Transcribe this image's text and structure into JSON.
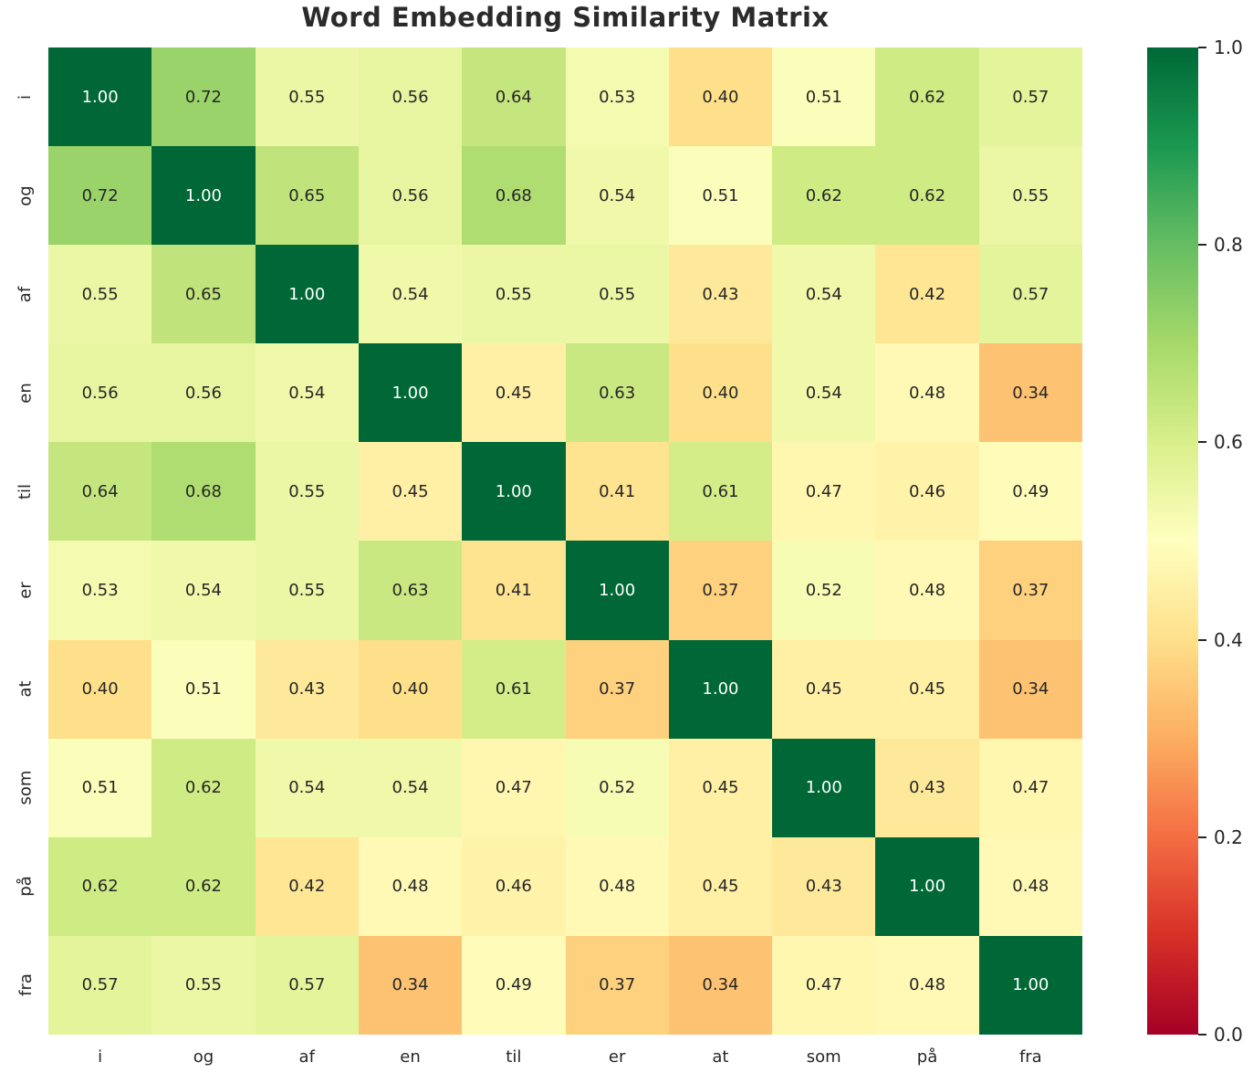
{
  "chart_data": {
    "type": "heatmap",
    "title": "Word Embedding Similarity Matrix",
    "x_tick_labels": [
      "i",
      "og",
      "af",
      "en",
      "til",
      "er",
      "at",
      "som",
      "på",
      "fra"
    ],
    "y_tick_labels": [
      "i",
      "og",
      "af",
      "en",
      "til",
      "er",
      "at",
      "som",
      "på",
      "fra"
    ],
    "matrix": [
      [
        1.0,
        0.72,
        0.55,
        0.56,
        0.64,
        0.53,
        0.4,
        0.51,
        0.62,
        0.57
      ],
      [
        0.72,
        1.0,
        0.65,
        0.56,
        0.68,
        0.54,
        0.51,
        0.62,
        0.62,
        0.55
      ],
      [
        0.55,
        0.65,
        1.0,
        0.54,
        0.55,
        0.55,
        0.43,
        0.54,
        0.42,
        0.57
      ],
      [
        0.56,
        0.56,
        0.54,
        1.0,
        0.45,
        0.63,
        0.4,
        0.54,
        0.48,
        0.34
      ],
      [
        0.64,
        0.68,
        0.55,
        0.45,
        1.0,
        0.41,
        0.61,
        0.47,
        0.46,
        0.49
      ],
      [
        0.53,
        0.54,
        0.55,
        0.63,
        0.41,
        1.0,
        0.37,
        0.52,
        0.48,
        0.37
      ],
      [
        0.4,
        0.51,
        0.43,
        0.4,
        0.61,
        0.37,
        1.0,
        0.45,
        0.45,
        0.34
      ],
      [
        0.51,
        0.62,
        0.54,
        0.54,
        0.47,
        0.52,
        0.45,
        1.0,
        0.43,
        0.47
      ],
      [
        0.62,
        0.62,
        0.42,
        0.48,
        0.46,
        0.48,
        0.45,
        0.43,
        1.0,
        0.48
      ],
      [
        0.57,
        0.55,
        0.57,
        0.34,
        0.49,
        0.37,
        0.34,
        0.47,
        0.48,
        1.0
      ]
    ],
    "value_decimals": 2,
    "colormap": {
      "name": "RdYlGn",
      "anchors": [
        "#a50026",
        "#d73027",
        "#f46d43",
        "#fdae61",
        "#fee08b",
        "#ffffbf",
        "#d9ef8b",
        "#a6d96a",
        "#66bd63",
        "#1a9850",
        "#006837"
      ]
    },
    "vmin": 0.0,
    "vmax": 1.0,
    "colorbar": {
      "ticks": [
        "1.0",
        "0.8",
        "0.6",
        "0.4",
        "0.2",
        "0.0"
      ],
      "position": "right"
    },
    "annotation_color_dark": "#262626",
    "annotation_color_light": "#ffffff",
    "grid": false,
    "legend": false
  }
}
